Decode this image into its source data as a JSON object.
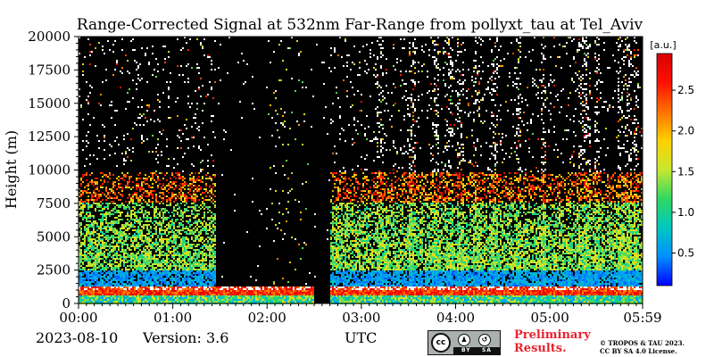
{
  "chart_data": {
    "type": "heatmap",
    "title": "Range-Corrected Signal at 532nm Far-Range from pollyxt_tau at Tel_Aviv",
    "xlabel": "UTC",
    "ylabel": "Height (m)",
    "x_ticks": [
      "00:00",
      "01:00",
      "02:00",
      "03:00",
      "04:00",
      "05:00",
      "05:59"
    ],
    "x_range_minutes": [
      0,
      359
    ],
    "y_ticks": [
      "0",
      "2500",
      "5000",
      "7500",
      "10000",
      "12500",
      "15000",
      "17500",
      "20000"
    ],
    "y_range": [
      0,
      20000
    ],
    "colorbar": {
      "label": "[a.u.]",
      "ticks": [
        "0.5",
        "1.0",
        "1.5",
        "2.0",
        "2.5"
      ],
      "range": [
        0.1,
        2.95
      ],
      "colormap": [
        "#0000ff",
        "#0090ff",
        "#00c8c0",
        "#30d860",
        "#c8e830",
        "#ffd000",
        "#ff7000",
        "#ff1000",
        "#d80000"
      ]
    },
    "features": {
      "cloud_layer_height": [
        600,
        1300
      ],
      "aerosol_layer_top": 9800,
      "no_signal_intervals_minutes": [
        [
          88,
          150
        ],
        [
          150,
          160
        ]
      ],
      "data_gap_minutes": [
        150,
        160
      ],
      "vertical_streaks_minutes": [
        192,
        212,
        227,
        236,
        243,
        253,
        265,
        280,
        296,
        320,
        324,
        330,
        345,
        350,
        355
      ]
    }
  },
  "footer": {
    "date": "2023-08-10",
    "version": "Version: 3.6",
    "utc": "UTC",
    "preliminary_line1": "Preliminary",
    "preliminary_line2": "Results.",
    "copyright_line1": "© TROPOS & TAU 2023.",
    "copyright_line2": "CC BY SA 4.0 License.",
    "license_badge": {
      "icon_name": "creative-commons-icon",
      "cc": "cc",
      "by": "BY",
      "sa": "SA"
    }
  }
}
